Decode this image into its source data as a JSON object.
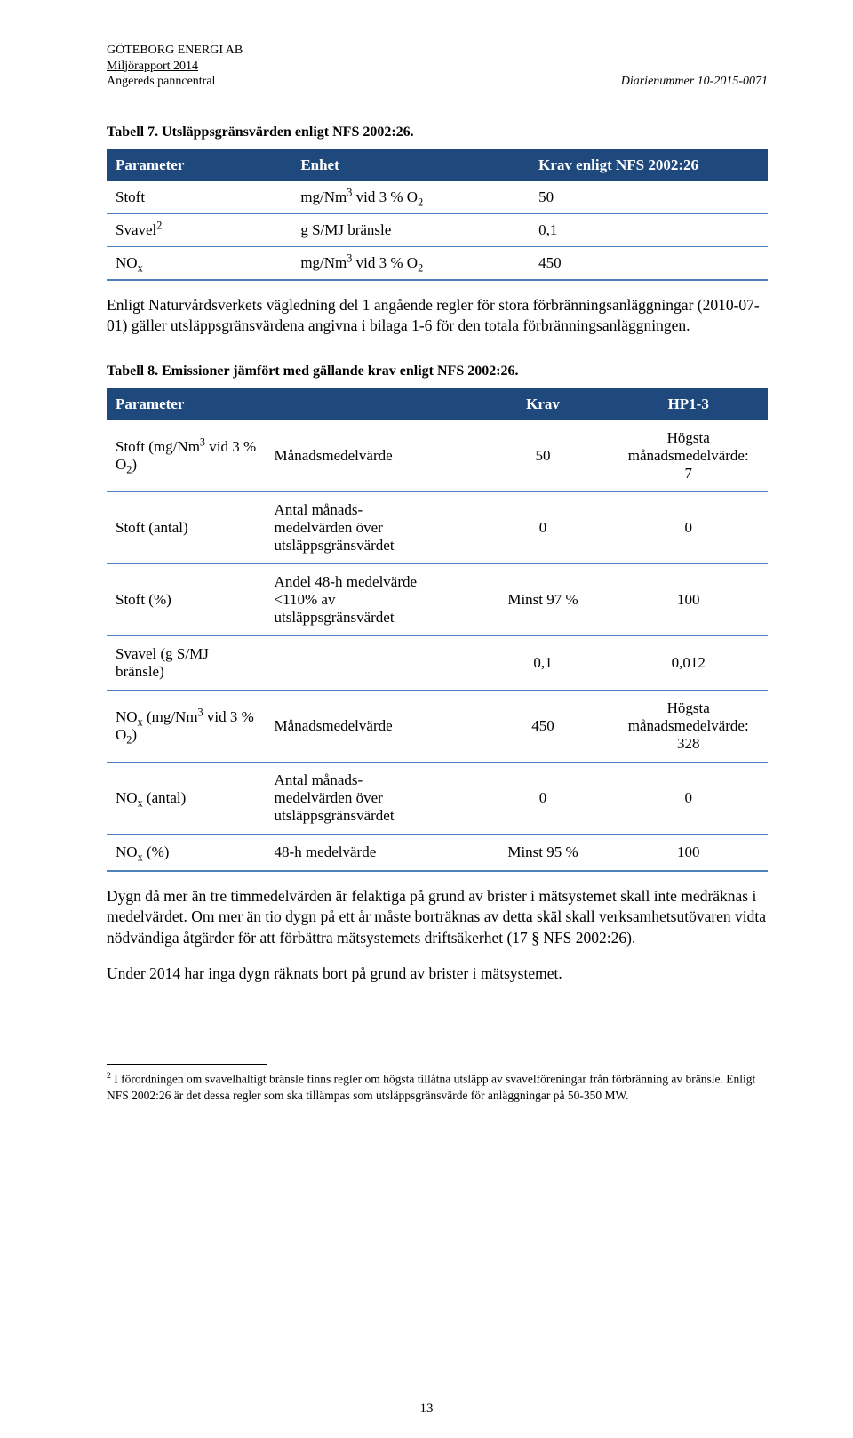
{
  "colors": {
    "header_bg": "#1f497d",
    "header_text": "#ffffff",
    "row_border": "#4f81bd",
    "page_bg": "#ffffff",
    "text": "#000000"
  },
  "header": {
    "company": "GÖTEBORG ENERGI AB",
    "report": "Miljörapport 2014",
    "site": "Angereds panncentral",
    "diarie": "Diarienummer 10-2015-0071"
  },
  "table7": {
    "caption": "Tabell 7. Utsläppsgränsvärden enligt NFS 2002:26.",
    "head": {
      "c1": "Parameter",
      "c2": "Enhet",
      "c3": "Krav enligt NFS 2002:26"
    },
    "rows": [
      {
        "param": "Stoft",
        "enhet_html": "mg/Nm<sup>3</sup> vid 3 % O<sub>2</sub>",
        "krav": "50"
      },
      {
        "param_html": "Svavel<sup>2</sup>",
        "enhet": "g S/MJ bränsle",
        "krav": "0,1"
      },
      {
        "param_html": "NO<sub>x</sub>",
        "enhet_html": "mg/Nm<sup>3</sup> vid 3 % O<sub>2</sub>",
        "krav": "450"
      }
    ]
  },
  "para_after_t7": "Enligt Naturvårdsverkets vägledning del 1 angående regler för stora förbränningsanläggningar (2010-07-01) gäller utsläppsgränsvärdena angivna i bilaga 1-6 för den totala förbrännings­anläggningen.",
  "table8": {
    "caption": "Tabell 8. Emissioner jämfört med gällande krav enligt NFS 2002:26.",
    "head": {
      "c1": "Parameter",
      "c2": "",
      "c3": "Krav",
      "c4": "HP1-3"
    },
    "rows": [
      {
        "c1_html": "Stoft (mg/Nm<sup>3</sup> vid 3 % O<sub>2</sub>)",
        "c2": "Månadsmedelvärde",
        "c3": "50",
        "c4_html": "Högsta<br>månadsmedelvärde:<br>7"
      },
      {
        "c1": "Stoft (antal)",
        "c2_html": "Antal månads-<br>medelvärden över<br>utsläppsgränsvärdet",
        "c3": "0",
        "c4": "0"
      },
      {
        "c1": "Stoft (%)",
        "c2_html": "Andel 48-h medelvärde<br>&lt;110% av<br>utsläppsgränsvärdet",
        "c3": "Minst 97 %",
        "c4": "100"
      },
      {
        "c1_html": "Svavel (g S/MJ<br>bränsle)",
        "c2": "",
        "c3": "0,1",
        "c4": "0,012"
      },
      {
        "c1_html": "NO<sub>x</sub> (mg/Nm<sup>3</sup> vid 3 % O<sub>2</sub>)",
        "c2": "Månadsmedelvärde",
        "c3": "450",
        "c4_html": "Högsta<br>månadsmedelvärde:<br>328"
      },
      {
        "c1_html": "NO<sub>x</sub> (antal)",
        "c2_html": "Antal månads-<br>medelvärden över<br>utsläppsgränsvärdet",
        "c3": "0",
        "c4": "0"
      },
      {
        "c1_html": "NO<sub>x</sub> (%)",
        "c2": "48-h medelvärde",
        "c3": "Minst 95 %",
        "c4": "100"
      }
    ]
  },
  "para_after_t8_1": "Dygn då mer än tre timmedelvärden är felaktiga på grund av brister i mätsystemet skall inte medräknas i medelvärdet. Om mer än tio dygn på ett år måste borträknas av detta skäl skall verksamhetsutövaren vidta nödvändiga åtgärder för att förbättra mätsystemets driftsäkerhet (17 § NFS 2002:26).",
  "para_after_t8_2": "Under 2014 har inga dygn räknats bort på grund av brister i mätsystemet.",
  "footnote": {
    "marker": "2",
    "text": " I förordningen om svavelhaltigt bränsle finns regler om högsta tillåtna utsläpp av svavelföreningar från förbränning av bränsle. Enligt NFS 2002:26 är det dessa regler som ska tillämpas som utsläppsgränsvärde för anläggningar på 50-350 MW."
  },
  "page_number": "13"
}
